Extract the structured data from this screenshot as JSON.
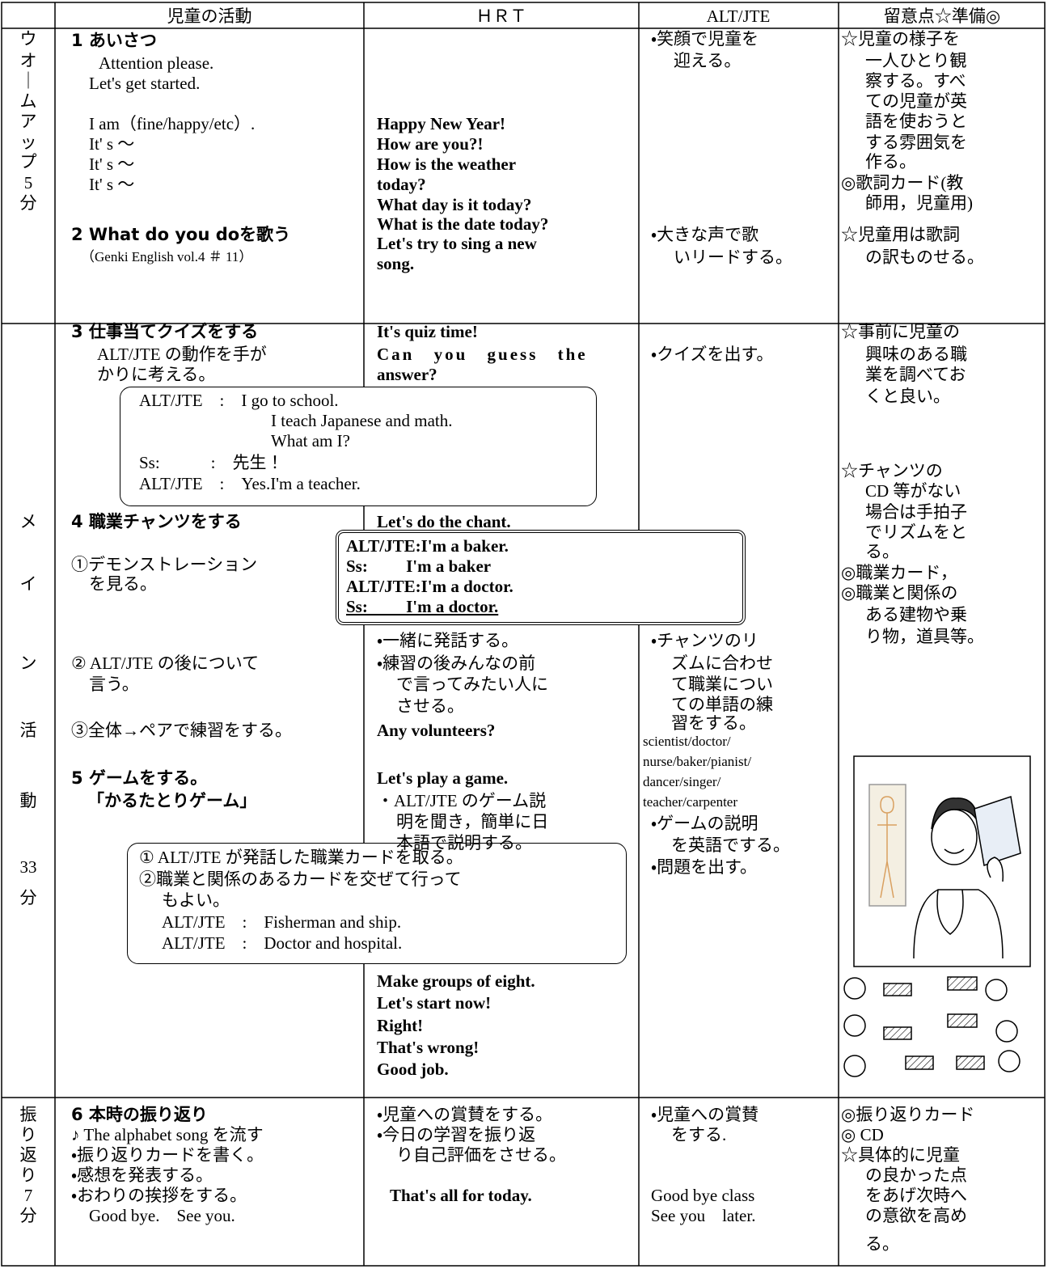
{
  "header": {
    "activity": "児童の活動",
    "hrt": "ＨＲＴ",
    "alt": "ALT/JTE",
    "notes": "留意点☆準備◎"
  },
  "warmup": {
    "stage": [
      "ウ",
      "オ",
      "｜",
      "ム",
      "ア",
      "ッ",
      "プ",
      "5",
      "分"
    ],
    "activity": [
      "1 あいさつ",
      "Attention please.",
      "Let's  get  started.",
      "I am（fine/happy/etc）.",
      "It' s ～",
      "It' s ～",
      "It' s ～",
      "2 What do you doを歌う",
      "（Genki English vol.4 ＃ 11）"
    ],
    "hrt": [
      "Happy New Year!",
      "How are you?!",
      "How is the weather",
      "today?",
      "What day is it today?",
      "What is the date today?",
      "Let's  try  to  sing  a  new",
      "song."
    ],
    "alt": [
      "・笑顔で児童を",
      "迎える。",
      "・大きな声で歌",
      "いリードする。"
    ],
    "notes": [
      "☆児童の様子を",
      "一人ひとり観",
      "察する。すべ",
      "ての児童が英",
      "語を使おうと",
      "する雰囲気を",
      "作る。",
      "◎歌詞カード(教",
      "師用，児童用)",
      "☆児童用は歌詞",
      "の訳ものせる。"
    ]
  },
  "main": {
    "stage": [
      "メ",
      "イ",
      "ン",
      "活",
      "動",
      "33",
      "分"
    ],
    "activity": [
      "3 仕事当てクイズをする",
      "ALT/JTE の動作を手が",
      "かりに考える。",
      "4 職業チャンツをする",
      "①デモンストレーション",
      "を見る。",
      "② ALT/JTE の後について",
      "言う。",
      "③全体→ペアで練習をする。",
      "5 ゲームをする。",
      "「かるたとりゲーム」"
    ],
    "quiz_box": [
      "ALT/JTE　:　I go to school.",
      "I teach Japanese and math.",
      "What am I?",
      "Ss:　　　:　先生！",
      "ALT/JTE　:　Yes.I'm a teacher."
    ],
    "chant_box": [
      "ALT/JTE:I'm a  baker.",
      "Ss:　　 I'm a  baker",
      "ALT/JTE:I'm a  doctor.",
      "Ss:　　 I'm a  doctor."
    ],
    "game_box": [
      "① ALT/JTE が発話した職業カードを取る。",
      "②職業と関係のあるカードを交ぜて行って",
      "もよい。",
      "ALT/JTE　:　Fisherman and ship.",
      "ALT/JTE　:　Doctor and hospital."
    ],
    "hrt": [
      "It's quiz time!",
      "Can you guess the",
      "answer?",
      "Let's  do the chant.",
      "・一緒に発話する。",
      "・練習の後みんなの前",
      "で言ってみたい人に",
      "させる。",
      "Any volunteers?",
      "Let's play a game.",
      "・ALT/JTE のゲーム説",
      "明を聞き，簡単に日",
      "本語で説明する。",
      "Make groups of eight.",
      "Let's start now!",
      "Right!",
      "That's wrong!",
      "Good job."
    ],
    "alt": [
      "・クイズを出す。",
      "・チャンツのリ",
      "ズムに合わせ",
      "て職業につい",
      "ての単語の練",
      "習をする。",
      "scientist/doctor/",
      "nurse/baker/pianist/",
      "dancer/singer/",
      "teacher/carpenter",
      "・ゲームの説明",
      "を英語でする。",
      "・問題を出す。"
    ],
    "notes": [
      "☆事前に児童の",
      "興味のある職",
      "業を調べてお",
      "くと良い。",
      "☆チャンツの",
      "CD 等がない",
      "場合は手拍子",
      "でリズムをと",
      "る。",
      "◎職業カード，",
      "◎職業と関係の",
      "ある建物や乗",
      "り物，道具等。"
    ]
  },
  "reflection": {
    "stage": [
      "振",
      "り",
      "返",
      "り",
      "7",
      "分"
    ],
    "activity": [
      "6 本時の振り返り",
      "♪ The alphabet song を流す",
      "・振り返りカードを書く。",
      "・感想を発表する。",
      "・おわりの挨拶をする。",
      "Good bye.　See you."
    ],
    "hrt": [
      "・児童への賞賛をする。",
      "・今日の学習を振り返",
      "り自己評価をさせる。",
      "That's all for today."
    ],
    "alt": [
      "・児童への賞賛",
      "をする.",
      "Good bye class",
      "See you　later."
    ],
    "notes": [
      "◎振り返りカード",
      "◎ CD",
      "☆具体的に児童",
      "の良かった点",
      "をあげ次時へ",
      "の意欲を高め",
      "る。"
    ]
  }
}
